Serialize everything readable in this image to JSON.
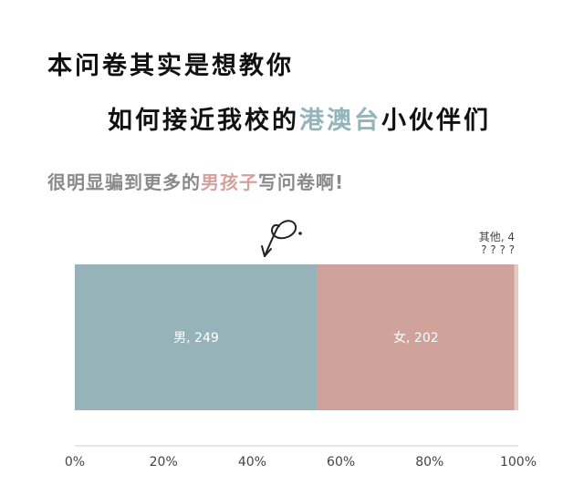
{
  "headline": {
    "line1": "本问卷其实是想教你",
    "line2_prefix": "如何接近我校的",
    "line2_highlight": "港澳台",
    "line2_suffix": "小伙伴们",
    "line3_prefix": "很明显骗到更多的",
    "line3_highlight": "男孩子",
    "line3_suffix": "写问卷啊!"
  },
  "colors": {
    "male": "#97b3ba",
    "female": "#cfa29c",
    "other": "#e8c8c3",
    "highlight_teal": "#93b4bb",
    "highlight_pink": "#d4a19c",
    "axis_line": "#cccccc",
    "tick_text": "#444444"
  },
  "chart_data": {
    "type": "bar",
    "orientation": "horizontal-stacked-100",
    "title": "",
    "xlabel": "",
    "ylabel": "",
    "xlim": [
      0,
      100
    ],
    "grid": false,
    "series": [
      {
        "name": "男",
        "value": 249,
        "label": "男, 249"
      },
      {
        "name": "女",
        "value": 202,
        "label": "女, 202"
      },
      {
        "name": "其他",
        "value": 4,
        "label": "其他, 4"
      }
    ],
    "other_annotation_line1": "其他, 4",
    "other_annotation_line2": "? ? ? ?",
    "ticks": [
      "0%",
      "20%",
      "40%",
      "60%",
      "80%",
      "100%"
    ]
  },
  "annotation": {
    "icon": "hand-drawn-arrow-icon"
  }
}
